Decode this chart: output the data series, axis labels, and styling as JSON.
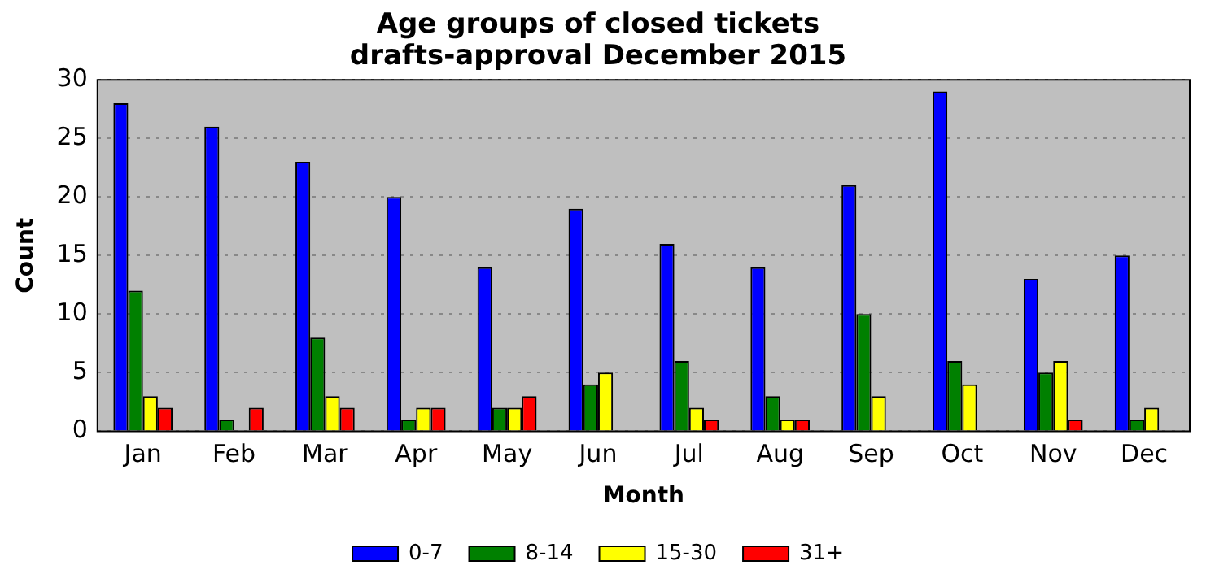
{
  "chart_data": {
    "type": "bar",
    "title": "Age groups of closed tickets\ndrafts-approval December 2015",
    "xlabel": "Month",
    "ylabel": "Count",
    "categories": [
      "Jan",
      "Feb",
      "Mar",
      "Apr",
      "May",
      "Jun",
      "Jul",
      "Aug",
      "Sep",
      "Oct",
      "Nov",
      "Dec"
    ],
    "series": [
      {
        "name": "0-7",
        "color": "#0000ff",
        "values": [
          28,
          26,
          23,
          20,
          14,
          19,
          16,
          14,
          21,
          29,
          13,
          15
        ]
      },
      {
        "name": "8-14",
        "color": "#008000",
        "values": [
          12,
          1,
          8,
          1,
          2,
          4,
          6,
          3,
          10,
          6,
          5,
          1
        ]
      },
      {
        "name": "15-30",
        "color": "#ffff00",
        "values": [
          3,
          0,
          3,
          2,
          2,
          5,
          2,
          1,
          3,
          4,
          6,
          2
        ]
      },
      {
        "name": "31+",
        "color": "#ff0000",
        "values": [
          2,
          2,
          2,
          2,
          3,
          0,
          1,
          1,
          0,
          0,
          1,
          0
        ]
      }
    ],
    "ylim": [
      0,
      30
    ],
    "yticks": [
      0,
      5,
      10,
      15,
      20,
      25,
      30
    ],
    "grid": "y",
    "legend": "bottom"
  }
}
